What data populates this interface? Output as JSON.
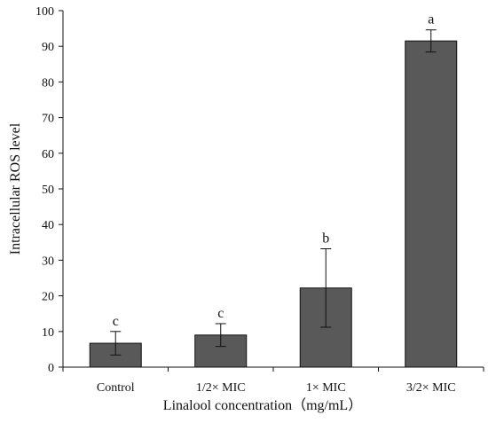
{
  "chart_data": {
    "type": "bar",
    "title": "",
    "xlabel": "Linalool concentration（mg/mL）",
    "ylabel": "Intracellular ROS level",
    "categories": [
      "Control",
      "1/2× MIC",
      "1× MIC",
      "3/2× MIC"
    ],
    "values": [
      6.7,
      9.0,
      22.2,
      91.5
    ],
    "error": [
      3.3,
      3.2,
      11.0,
      3.1
    ],
    "labels": [
      "c",
      "c",
      "b",
      "a"
    ],
    "ylim": [
      0,
      100
    ],
    "yticks": [
      0,
      10,
      20,
      30,
      40,
      50,
      60,
      70,
      80,
      90,
      100
    ],
    "grid": false,
    "legend": "none",
    "colors": {
      "bar_fill": "#595959",
      "bar_stroke": "#111111",
      "axis": "#111111",
      "text": "#111111",
      "background": "#ffffff"
    }
  }
}
